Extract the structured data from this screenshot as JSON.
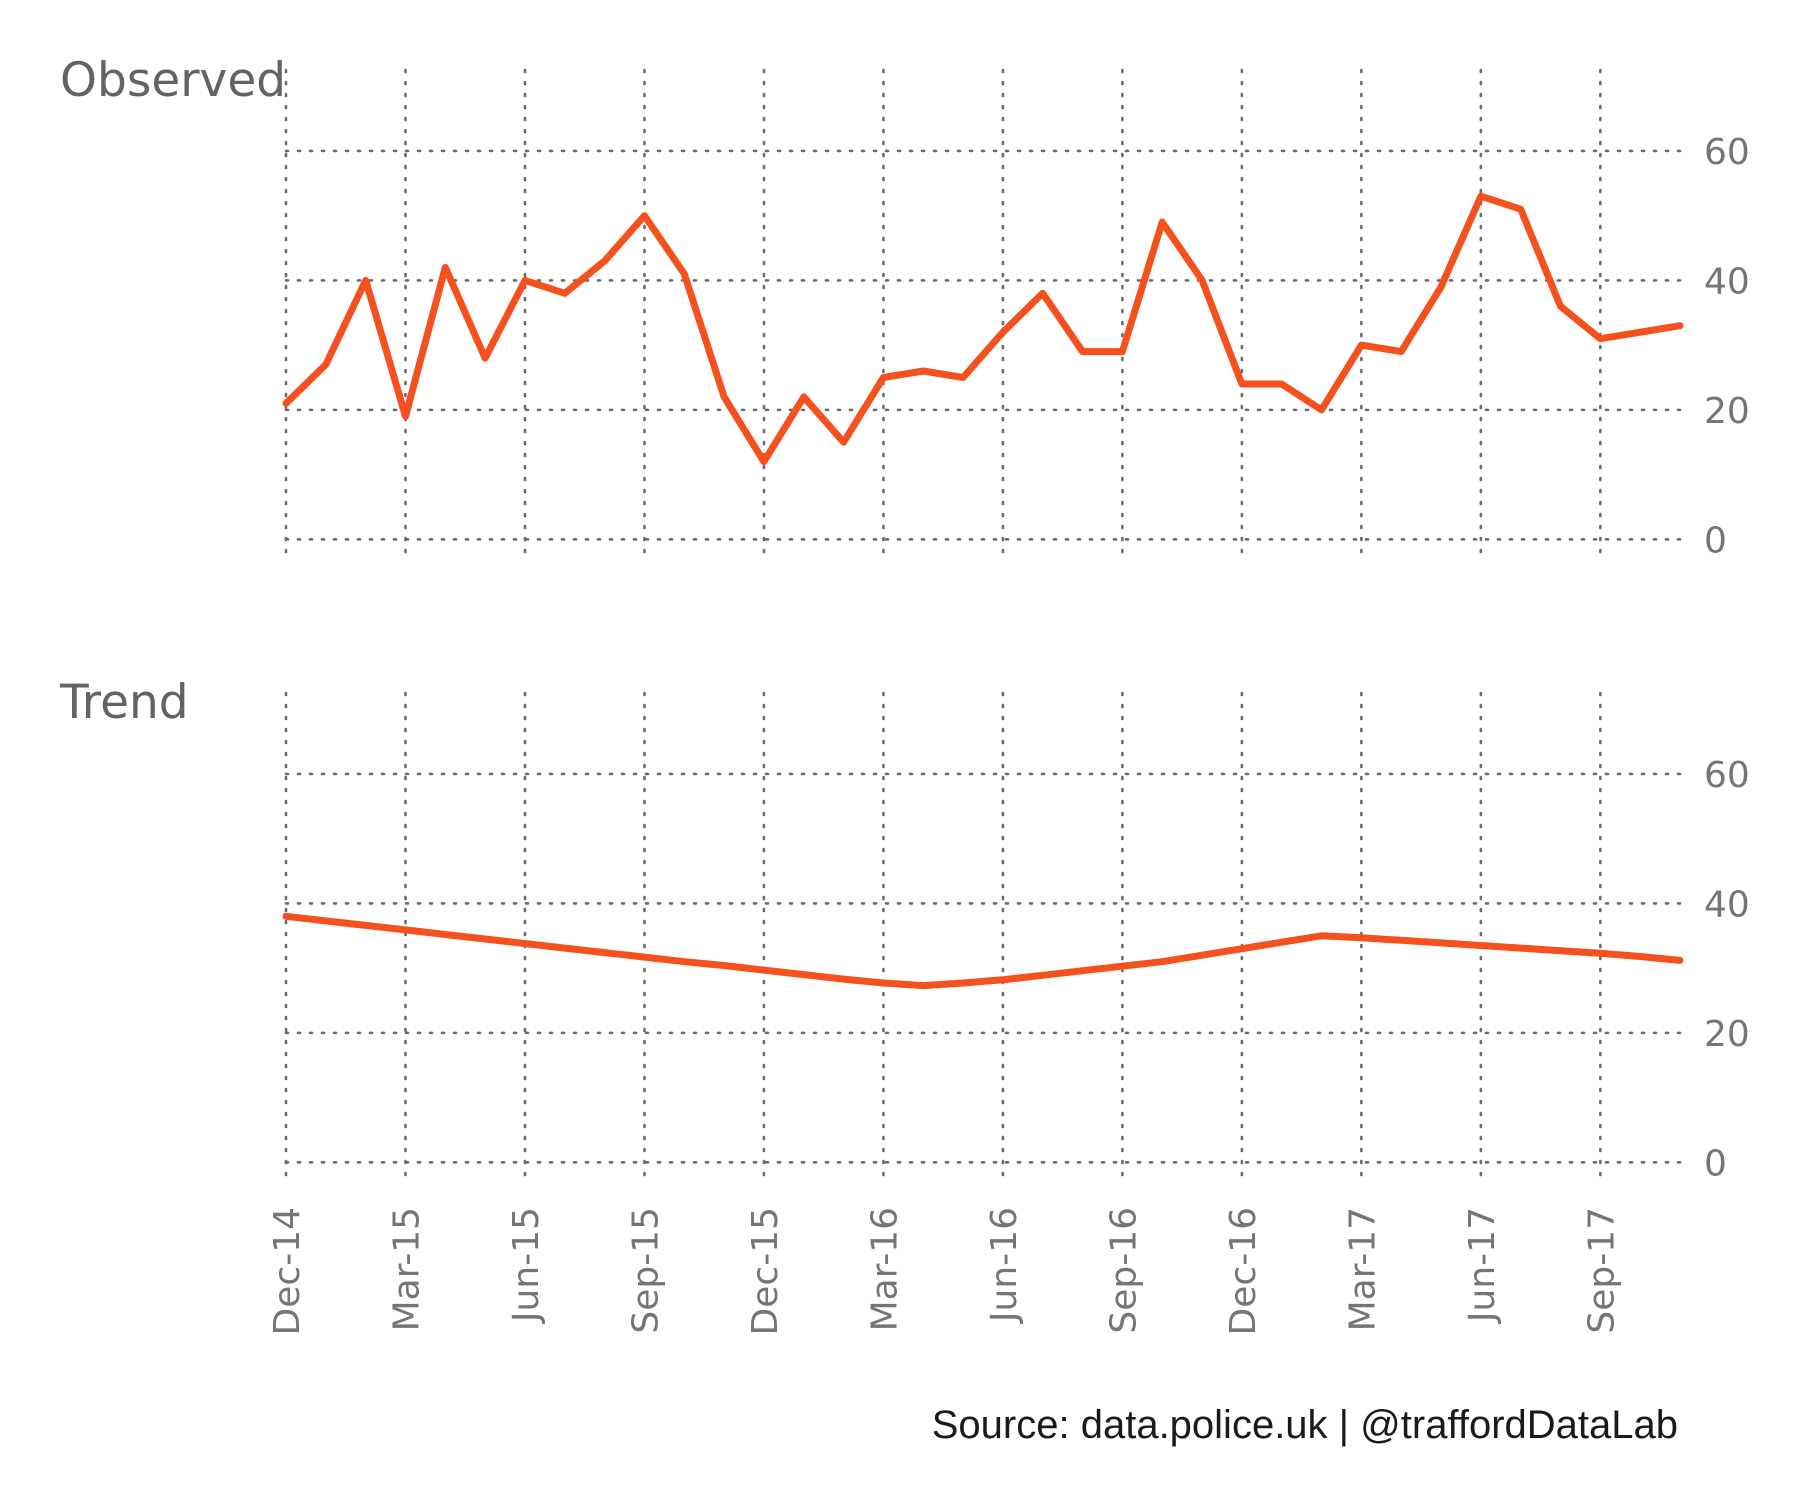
{
  "caption": "Source: data.police.uk  |  @traffordDataLab",
  "colors": {
    "line": "#F4511E",
    "grid": "#6b6b6b",
    "text": "#757575",
    "title": "#636363"
  },
  "chart_data": [
    {
      "type": "line",
      "title": "Observed",
      "xlabel": "",
      "ylabel": "",
      "x": [
        "2014-12",
        "2015-01",
        "2015-02",
        "2015-03",
        "2015-04",
        "2015-05",
        "2015-06",
        "2015-07",
        "2015-08",
        "2015-09",
        "2015-10",
        "2015-11",
        "2015-12",
        "2016-01",
        "2016-02",
        "2016-03",
        "2016-04",
        "2016-05",
        "2016-06",
        "2016-07",
        "2016-08",
        "2016-09",
        "2016-10",
        "2016-11",
        "2016-12",
        "2017-01",
        "2017-02",
        "2017-03",
        "2017-04",
        "2017-05",
        "2017-06",
        "2017-07",
        "2017-08",
        "2017-09",
        "2017-10",
        "2017-11"
      ],
      "values": [
        21,
        27,
        40,
        19,
        42,
        28,
        40,
        38,
        43,
        50,
        41,
        22,
        12,
        22,
        15,
        25,
        26,
        25,
        32,
        38,
        29,
        29,
        49,
        40,
        24,
        24,
        20,
        30,
        29,
        39,
        53,
        51,
        36,
        31,
        32,
        33
      ],
      "x_ticks": [
        "Dec-14",
        "Mar-15",
        "Jun-15",
        "Sep-15",
        "Dec-15",
        "Mar-16",
        "Jun-16",
        "Sep-16",
        "Dec-16",
        "Mar-17",
        "Jun-17",
        "Sep-17"
      ],
      "y_ticks": [
        "0",
        "20",
        "40",
        "60"
      ],
      "ylim": [
        -3.5,
        72.5
      ],
      "y_axis_position": "right",
      "grid": true
    },
    {
      "type": "line",
      "title": "Trend",
      "xlabel": "",
      "ylabel": "",
      "x": [
        "2014-12",
        "2015-01",
        "2015-02",
        "2015-03",
        "2015-04",
        "2015-05",
        "2015-06",
        "2015-07",
        "2015-08",
        "2015-09",
        "2015-10",
        "2015-11",
        "2015-12",
        "2016-01",
        "2016-02",
        "2016-03",
        "2016-04",
        "2016-05",
        "2016-06",
        "2016-07",
        "2016-08",
        "2016-09",
        "2016-10",
        "2016-11",
        "2016-12",
        "2017-01",
        "2017-02",
        "2017-03",
        "2017-04",
        "2017-05",
        "2017-06",
        "2017-07",
        "2017-08",
        "2017-09",
        "2017-10",
        "2017-11"
      ],
      "values": [
        38.0,
        37.3,
        36.6,
        35.9,
        35.2,
        34.5,
        33.8,
        33.1,
        32.4,
        31.7,
        31.0,
        30.4,
        29.7,
        29.0,
        28.3,
        27.7,
        27.3,
        27.7,
        28.2,
        28.9,
        29.6,
        30.3,
        31.0,
        32.0,
        33.0,
        34.0,
        35.0,
        34.7,
        34.3,
        33.9,
        33.5,
        33.1,
        32.7,
        32.3,
        31.8,
        31.2
      ],
      "x_ticks": [
        "Dec-14",
        "Mar-15",
        "Jun-15",
        "Sep-15",
        "Dec-15",
        "Mar-16",
        "Jun-16",
        "Sep-16",
        "Dec-16",
        "Mar-17",
        "Jun-17",
        "Sep-17"
      ],
      "y_ticks": [
        "0",
        "20",
        "40",
        "60"
      ],
      "ylim": [
        -3.5,
        72.5
      ],
      "y_axis_position": "right",
      "grid": true
    }
  ]
}
